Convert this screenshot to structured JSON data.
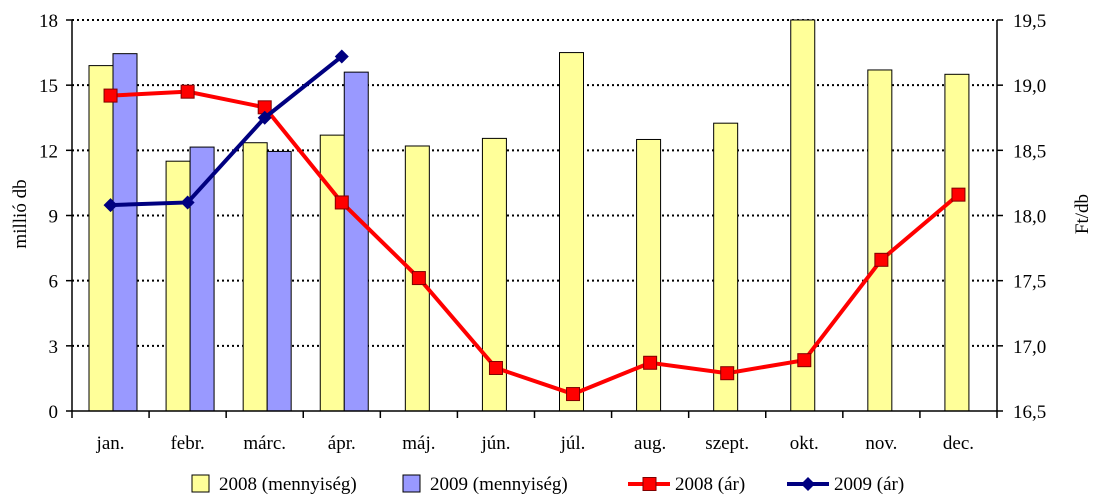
{
  "chart_data": {
    "type": "bar",
    "categories": [
      "jan.",
      "febr.",
      "márc.",
      "ápr.",
      "máj.",
      "jún.",
      "júl.",
      "aug.",
      "szept.",
      "okt.",
      "nov.",
      "dec."
    ],
    "y_left": {
      "label": "millió db",
      "range": [
        0,
        18
      ],
      "ticks": [
        "0",
        "3",
        "6",
        "9",
        "12",
        "15",
        "18"
      ]
    },
    "y_right": {
      "label": "Ft/db",
      "range": [
        16.5,
        19.5
      ],
      "ticks": [
        "16,5",
        "17,0",
        "17,5",
        "18,0",
        "18,5",
        "19,0",
        "19,5"
      ]
    },
    "grid": "horizontal dotted",
    "legend_position": "bottom",
    "series": [
      {
        "name": "2008 (mennyiség)",
        "type": "bar",
        "axis": "left",
        "color": "#ffff99",
        "values": [
          15.9,
          11.5,
          12.35,
          12.7,
          12.2,
          12.55,
          16.5,
          12.5,
          13.25,
          18.0,
          15.7,
          15.5
        ]
      },
      {
        "name": "2009 (mennyiség)",
        "type": "bar",
        "axis": "left",
        "color": "#9999ff",
        "values": [
          16.45,
          12.15,
          11.95,
          15.6,
          null,
          null,
          null,
          null,
          null,
          null,
          null,
          null
        ]
      },
      {
        "name": "2008 (ár)",
        "type": "line",
        "axis": "right",
        "color": "#ff0000",
        "marker": "square",
        "values": [
          18.92,
          18.95,
          18.83,
          18.1,
          17.52,
          16.83,
          16.63,
          16.87,
          16.79,
          16.89,
          17.66,
          18.16
        ]
      },
      {
        "name": "2009 (ár)",
        "type": "line",
        "axis": "right",
        "color": "#000080",
        "marker": "diamond",
        "values": [
          18.08,
          18.1,
          18.75,
          19.22,
          null,
          null,
          null,
          null,
          null,
          null,
          null,
          null
        ]
      }
    ]
  }
}
